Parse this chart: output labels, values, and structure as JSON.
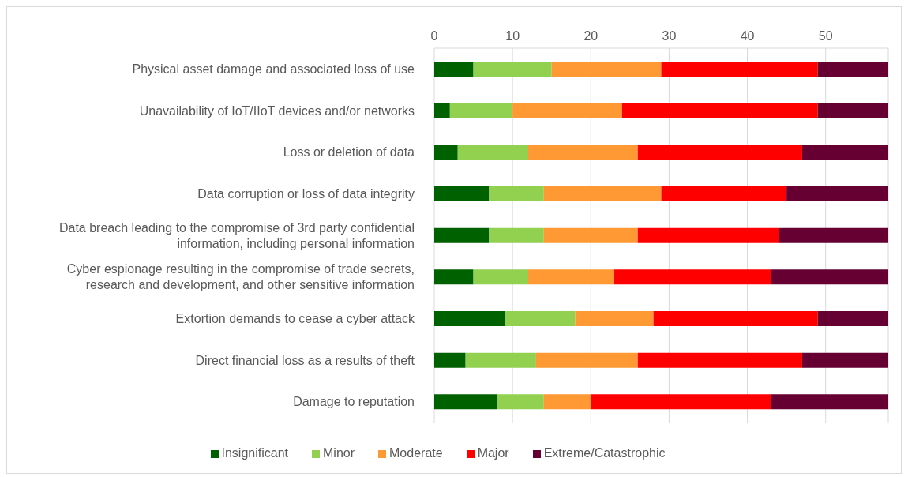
{
  "chart_data": {
    "type": "bar",
    "orientation": "horizontal",
    "stacked": true,
    "categories": [
      "Physical asset damage and associated loss of use",
      "Unavailability of IoT/IIoT devices and/or networks",
      "Loss or deletion of data",
      "Data corruption or loss of data integrity",
      "Data breach leading to the compromise of 3rd party confidential information, including personal information",
      "Cyber espionage resulting in the compromise of trade secrets, research and development, and other sensitive information",
      "Extortion demands to cease a cyber attack",
      "Direct financial loss as a results of theft",
      "Damage to reputation"
    ],
    "series": [
      {
        "name": "Insignificant",
        "color": "#006100",
        "values": [
          5,
          2,
          3,
          7,
          7,
          5,
          9,
          4,
          8
        ]
      },
      {
        "name": "Minor",
        "color": "#92d050",
        "values": [
          10,
          8,
          9,
          7,
          7,
          7,
          9,
          9,
          6
        ]
      },
      {
        "name": "Moderate",
        "color": "#ff9933",
        "values": [
          14,
          14,
          14,
          15,
          12,
          11,
          10,
          13,
          6
        ]
      },
      {
        "name": "Major",
        "color": "#ff0000",
        "values": [
          20,
          25,
          21,
          16,
          18,
          20,
          21,
          21,
          23
        ]
      },
      {
        "name": "Extreme/Catastrophic",
        "color": "#660033",
        "values": [
          9,
          9,
          11,
          13,
          14,
          15,
          9,
          11,
          15
        ]
      }
    ],
    "xlim": [
      0,
      58
    ],
    "xticks": [
      0,
      10,
      20,
      30,
      40,
      50
    ],
    "grid": "x",
    "legend": "bottom"
  }
}
